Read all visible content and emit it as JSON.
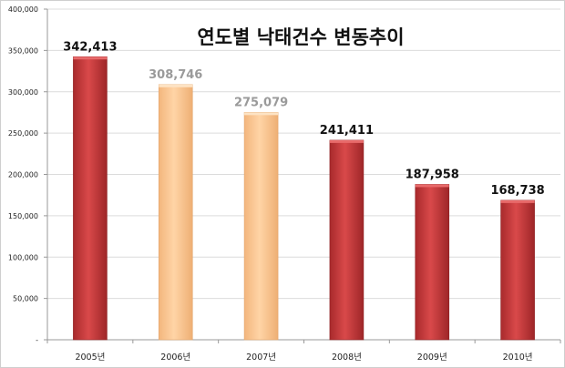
{
  "chart_data": {
    "type": "bar",
    "title": "연도별 낙태건수 변동추이",
    "categories": [
      "2005년",
      "2006년",
      "2007년",
      "2008년",
      "2009년",
      "2010년"
    ],
    "values": [
      342413,
      308746,
      275079,
      241411,
      187958,
      168738
    ],
    "data_labels": [
      "342,413",
      "308,746",
      "275,079",
      "241,411",
      "187,958",
      "168,738"
    ],
    "highlight": [
      false,
      true,
      true,
      false,
      false,
      false
    ],
    "ylim": [
      0,
      400000
    ],
    "yticks": [
      0,
      50000,
      100000,
      150000,
      200000,
      250000,
      300000,
      350000,
      400000
    ],
    "ytick_labels": [
      "-",
      "50,000",
      "100,000",
      "150,000",
      "200,000",
      "250,000",
      "300,000",
      "350,000",
      "400,000"
    ],
    "xlabel": "",
    "ylabel": "",
    "grid": true,
    "colors": {
      "normal": "#c0393b",
      "highlight": "#fcc691",
      "label_normal": "#111111",
      "label_highlight": "#9a9a9a"
    }
  }
}
